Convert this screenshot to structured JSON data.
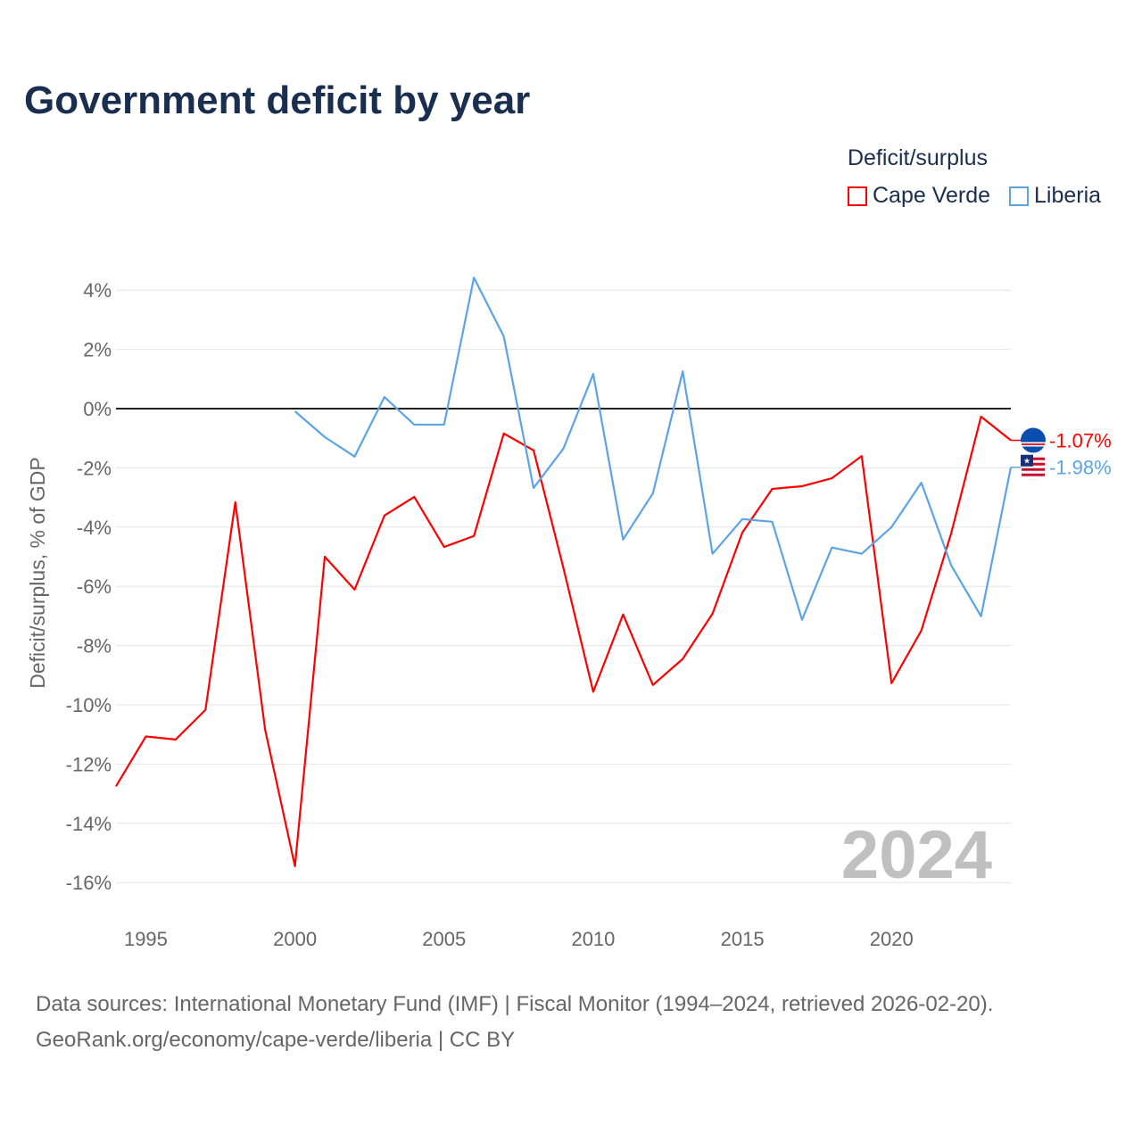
{
  "title": "Government deficit by year",
  "legend": {
    "title": "Deficit/surplus",
    "items": [
      {
        "label": "Cape Verde",
        "color": "#ff0000"
      },
      {
        "label": "Liberia",
        "color": "#5ba4e6"
      }
    ]
  },
  "source": {
    "line1": "Data sources: International Monetary Fund (IMF) | Fiscal Monitor (1994–2024, retrieved 2026-02-20).",
    "line2": "GeoRank.org/economy/cape-verde/liberia | CC BY"
  },
  "year_label": "2024",
  "chart_data": {
    "type": "line",
    "title": "Government deficit by year",
    "xlabel": "",
    "ylabel": "Deficit/surplus, % of GDP",
    "xlim": [
      1994,
      2024
    ],
    "ylim": [
      -17,
      5
    ],
    "x_ticks": [
      1995,
      2000,
      2005,
      2010,
      2015,
      2020
    ],
    "y_ticks": [
      4,
      2,
      0,
      -2,
      -4,
      -6,
      -8,
      -10,
      -12,
      -14,
      -16
    ],
    "y_tick_labels": [
      "4%",
      "2%",
      "0%",
      "-2%",
      "-4%",
      "-6%",
      "-8%",
      "-10%",
      "-12%",
      "-14%",
      "-16%"
    ],
    "grid": true,
    "legend_position": "top-right",
    "series": [
      {
        "name": "Cape Verde",
        "color": "#ff0000",
        "end_label": "-1.07%",
        "x": [
          1994,
          1995,
          1996,
          1997,
          1998,
          1999,
          2000,
          2001,
          2002,
          2003,
          2004,
          2005,
          2006,
          2007,
          2008,
          2009,
          2010,
          2011,
          2012,
          2013,
          2014,
          2015,
          2016,
          2017,
          2018,
          2019,
          2020,
          2021,
          2022,
          2023,
          2024
        ],
        "values": [
          -12.75,
          -11.07,
          -11.17,
          -10.17,
          -3.16,
          -10.84,
          -15.45,
          -5.0,
          -6.11,
          -3.61,
          -2.98,
          -4.67,
          -4.3,
          -0.84,
          -1.41,
          -5.38,
          -9.56,
          -6.95,
          -9.33,
          -8.45,
          -6.92,
          -4.18,
          -2.71,
          -2.62,
          -2.35,
          -1.6,
          -9.27,
          -7.49,
          -4.21,
          -0.27,
          -1.07
        ]
      },
      {
        "name": "Liberia",
        "color": "#5ba4e6",
        "end_label": "-1.98%",
        "x": [
          2000,
          2001,
          2002,
          2003,
          2004,
          2005,
          2006,
          2007,
          2008,
          2009,
          2010,
          2011,
          2012,
          2013,
          2014,
          2015,
          2016,
          2017,
          2018,
          2019,
          2020,
          2021,
          2022,
          2023,
          2024
        ],
        "values": [
          -0.09,
          -0.96,
          -1.62,
          0.39,
          -0.54,
          -0.54,
          4.42,
          2.44,
          -2.68,
          -1.35,
          1.17,
          -4.42,
          -2.86,
          1.26,
          -4.9,
          -3.73,
          -3.82,
          -7.13,
          -4.69,
          -4.9,
          -4.0,
          -2.5,
          -5.29,
          -7.01,
          -1.98
        ]
      }
    ]
  }
}
